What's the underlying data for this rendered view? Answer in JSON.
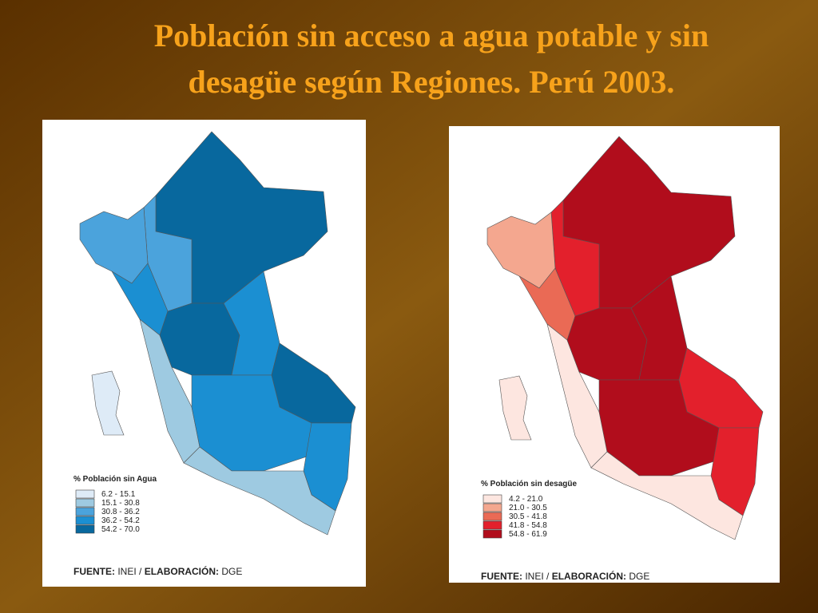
{
  "title": "Población sin acceso a agua potable y sin desagüe según Regiones. Perú 2003.",
  "maps": [
    {
      "legend": {
        "title": "% Población sin Agua",
        "items": [
          {
            "label": "6.2 - 15.1",
            "color": "#deebf7"
          },
          {
            "label": "15.1 - 30.8",
            "color": "#9ecae1"
          },
          {
            "label": "30.8 - 36.2",
            "color": "#4ba3dc"
          },
          {
            "label": "36.2 - 54.2",
            "color": "#1b8fd2"
          },
          {
            "label": "54.2 - 70.0",
            "color": "#08689e"
          }
        ]
      },
      "source": {
        "label": "FUENTE:",
        "org": "INEI /",
        "elab_label": "ELABORACIÓN:",
        "elab": "DGE"
      }
    },
    {
      "legend": {
        "title": "% Población sin desagüe",
        "items": [
          {
            "label": "4.2 - 21.0",
            "color": "#fde6e0"
          },
          {
            "label": "21.0 - 30.5",
            "color": "#f4a78f"
          },
          {
            "label": "30.5 - 41.8",
            "color": "#ea6a55"
          },
          {
            "label": "41.8 - 54.8",
            "color": "#e3202c"
          },
          {
            "label": "54.8 - 61.9",
            "color": "#b10d1c"
          }
        ]
      },
      "source": {
        "label": "FUENTE:",
        "org": "INEI /",
        "elab_label": "ELABORACIÓN:",
        "elab": "DGE"
      }
    }
  ]
}
